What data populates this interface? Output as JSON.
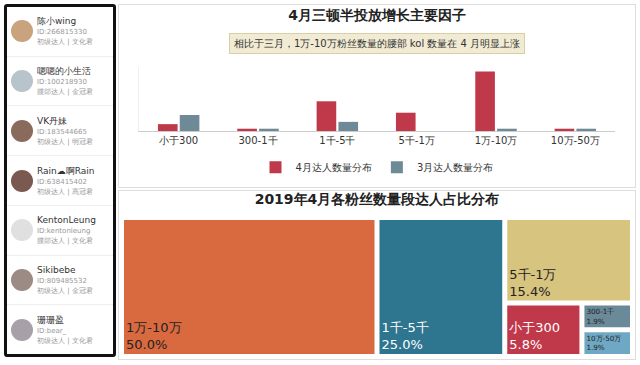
{
  "user_list": [
    {
      "name": "陈小wing",
      "id": "ID:266815330",
      "tag": "初级达人 | 文化君"
    },
    {
      "name": "嗯嗯的小生活",
      "id": "ID:100218930",
      "tag": "腰部达人 | 金冠君"
    },
    {
      "name": "VK丹妹",
      "id": "ID:183544665",
      "tag": "初级达人 | 明冠君"
    },
    {
      "name": "Rain☁啊Rain",
      "id": "ID:638415402",
      "tag": "初级达人 | 高冠君"
    },
    {
      "name": "KentonLeung",
      "id": "ID:kentonleung",
      "tag": "腰部达人 | 文化君"
    },
    {
      "name": "Sikibebe",
      "id": "ID:809485532",
      "tag": "初级达人 | 金冠君"
    },
    {
      "name": "珊珊盈",
      "id": "ID:bear_",
      "tag": "初级达人 | 文化君"
    }
  ],
  "chart_data": [
    {
      "type": "bar",
      "title": "4月三顿半投放增长主要因子",
      "annotation": "相比于三月，1万-10万粉丝数量的腰部 kol 数量在 4 月明显上涨",
      "categories": [
        "小于300",
        "300-1千",
        "1千-5千",
        "5千-1万",
        "1万-10万",
        "10万-50万"
      ],
      "series": [
        {
          "name": "4月达人数量分布",
          "color": "#c0394b",
          "values": [
            3,
            1,
            13,
            8,
            26,
            1
          ]
        },
        {
          "name": "3月达人数量分布",
          "color": "#6e8a96",
          "values": [
            7,
            1,
            4,
            0,
            1,
            1
          ]
        }
      ],
      "ylim": [
        0,
        28
      ],
      "tick_labels": "x",
      "grid": false,
      "legend": "bottom"
    },
    {
      "type": "treemap",
      "title": "2019年4月各粉丝数量段达人占比分布",
      "categories": [
        "1万-10万",
        "1千-5千",
        "5千-1万",
        "小于300",
        "300-1千",
        "10万-50万"
      ],
      "values": [
        50.0,
        25.0,
        15.4,
        5.8,
        1.9,
        1.9
      ],
      "value_labels": [
        "50.0%",
        "25.0%",
        "15.4%",
        "5.8%",
        "1.9%",
        "1.9%"
      ],
      "colors": [
        "#d9693f",
        "#2e7590",
        "#d6c47f",
        "#c0394b",
        "#6a8999",
        "#6fa8c4"
      ]
    }
  ]
}
